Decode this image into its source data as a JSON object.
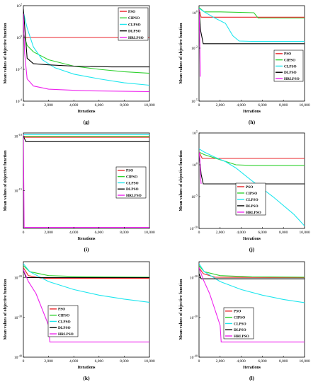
{
  "colors": {
    "PSO": "#e8262b",
    "CIPSO": "#2fd12f",
    "CLPSO": "#1ee6ee",
    "DLPSO": "#000000",
    "HRLPSO": "#ee22ee"
  },
  "chart_data": [
    {
      "type": "line",
      "caption": "(g)",
      "ylabel": "Mean values of objective function",
      "xlabel": "Iterations",
      "y_scale": "log",
      "ylim_exp": [
        -4,
        2
      ],
      "yticks": [
        {
          "exp": 2,
          "label": "10",
          "sup": "2"
        },
        {
          "exp": 0,
          "label": "10",
          "sup": "0"
        },
        {
          "exp": -2,
          "label": "10",
          "sup": "-2"
        },
        {
          "exp": -4,
          "label": "10",
          "sup": "-4"
        }
      ],
      "xlim": [
        0,
        10000
      ],
      "xticks": [
        "0",
        "2,000",
        "4,000",
        "6,000",
        "8,000",
        "10,000"
      ],
      "legend": {
        "position": "top-right",
        "entries": [
          "PSO",
          "CIPSO",
          "CLPSO",
          "DLPSO",
          "HRLPSO"
        ]
      },
      "series": [
        {
          "name": "PSO",
          "points": [
            [
              0,
              0
            ],
            [
              10000,
              0
            ]
          ]
        },
        {
          "name": "CIPSO",
          "points": [
            [
              0,
              0.3
            ],
            [
              300,
              -0.5
            ],
            [
              800,
              -0.9
            ],
            [
              2000,
              -1.4
            ],
            [
              4000,
              -1.8
            ],
            [
              6000,
              -2.0
            ],
            [
              8000,
              -2.15
            ],
            [
              10000,
              -2.25
            ]
          ]
        },
        {
          "name": "CLPSO",
          "points": [
            [
              0,
              1.6
            ],
            [
              300,
              0.6
            ],
            [
              800,
              -0.6
            ],
            [
              1500,
              -1.4
            ],
            [
              2500,
              -1.9
            ],
            [
              4000,
              -2.3
            ],
            [
              6000,
              -2.6
            ],
            [
              8000,
              -2.85
            ],
            [
              10000,
              -3.0
            ]
          ]
        },
        {
          "name": "DLPSO",
          "points": [
            [
              0,
              1.8
            ],
            [
              150,
              0.2
            ],
            [
              300,
              -1.3
            ],
            [
              800,
              -1.65
            ],
            [
              2000,
              -1.72
            ],
            [
              4000,
              -1.8
            ],
            [
              7000,
              -1.85
            ],
            [
              10000,
              -1.85
            ]
          ]
        },
        {
          "name": "HRLPSO",
          "points": [
            [
              0,
              1.5
            ],
            [
              100,
              -1.0
            ],
            [
              300,
              -2.6
            ],
            [
              800,
              -3.05
            ],
            [
              2000,
              -3.25
            ],
            [
              5000,
              -3.35
            ],
            [
              10000,
              -3.4
            ]
          ]
        }
      ]
    },
    {
      "type": "line",
      "caption": "(h)",
      "ylabel": "Mean values of objective function",
      "xlabel": "Iterations",
      "y_scale": "log",
      "ylim_exp": [
        -5,
        0.4
      ],
      "yticks": [
        {
          "exp": 0,
          "label": "10",
          "sup": "0"
        },
        {
          "exp": -2,
          "label": "10",
          "sup": "-2"
        },
        {
          "exp": -5,
          "label": "10",
          "sup": "-5"
        }
      ],
      "xlim": [
        0,
        10000
      ],
      "xticks": [
        "0",
        "2,000",
        "4,000",
        "6,000",
        "8,000",
        "10,000"
      ],
      "legend": {
        "position": "center-right",
        "entries": [
          "PSO",
          "CIPSO",
          "CLPSO",
          "DLPSO",
          "HRLPSO"
        ]
      },
      "series": [
        {
          "name": "PSO",
          "points": [
            [
              0,
              0.2
            ],
            [
              200,
              -0.25
            ],
            [
              10000,
              -0.25
            ]
          ]
        },
        {
          "name": "CIPSO",
          "points": [
            [
              0,
              0.3
            ],
            [
              500,
              0.05
            ],
            [
              2000,
              0.05
            ],
            [
              5200,
              0.0
            ],
            [
              5600,
              -0.3
            ],
            [
              7000,
              -0.3
            ],
            [
              10000,
              -0.3
            ]
          ]
        },
        {
          "name": "CLPSO",
          "points": [
            [
              0,
              0.25
            ],
            [
              500,
              0.05
            ],
            [
              1500,
              -0.3
            ],
            [
              2500,
              -0.6
            ],
            [
              3200,
              -1.3
            ],
            [
              3800,
              -1.6
            ],
            [
              5000,
              -1.62
            ],
            [
              10000,
              -1.62
            ]
          ]
        },
        {
          "name": "DLPSO",
          "points": [
            [
              0,
              0.2
            ],
            [
              150,
              -1.0
            ],
            [
              400,
              -1.75
            ],
            [
              10000,
              -1.75
            ]
          ]
        },
        {
          "name": "HRLPSO",
          "points": [
            [
              0,
              0.2
            ],
            [
              60,
              -1.2
            ],
            [
              120,
              -3.6
            ],
            [
              150,
              -3.6
            ]
          ]
        }
      ]
    },
    {
      "type": "line",
      "caption": "(i)",
      "ylabel": "Mean values of objective function",
      "xlabel": "Iterations",
      "y_scale": "log",
      "ylim_exp": [
        -18.5,
        -9.7
      ],
      "yticks": [
        {
          "exp": -10,
          "label": "10",
          "sup": "-10"
        },
        {
          "exp": -15,
          "label": "10",
          "sup": "-15"
        }
      ],
      "xlim": [
        0,
        10000
      ],
      "xticks": [
        "0",
        "2,000",
        "4,000",
        "6,000",
        "8,000",
        "10,000"
      ],
      "legend": {
        "position": "center-right",
        "entries": [
          "PSO",
          "CIPSO",
          "CLPSO",
          "DLPSO",
          "HRLPSO"
        ]
      },
      "series": [
        {
          "name": "PSO",
          "points": [
            [
              0,
              -10.1
            ],
            [
              10000,
              -10.1
            ]
          ]
        },
        {
          "name": "CIPSO",
          "points": [
            [
              0,
              -10.0
            ],
            [
              10000,
              -10.0
            ]
          ]
        },
        {
          "name": "CLPSO",
          "points": [
            [
              0,
              -9.85
            ],
            [
              10000,
              -9.85
            ]
          ]
        },
        {
          "name": "DLPSO",
          "points": [
            [
              0,
              -10.0
            ],
            [
              200,
              -10.5
            ],
            [
              10000,
              -10.5
            ]
          ]
        },
        {
          "name": "HRLPSO",
          "points": [
            [
              0,
              -9.85
            ],
            [
              60,
              -18.4
            ],
            [
              10000,
              -18.4
            ]
          ]
        }
      ]
    },
    {
      "type": "line",
      "caption": "(j)",
      "ylabel": "Mean values of objective function",
      "xlabel": "Iterations",
      "y_scale": "log",
      "ylim_exp": [
        -10,
        5
      ],
      "yticks": [
        {
          "exp": 5,
          "label": "10",
          "sup": "5"
        },
        {
          "exp": 0,
          "label": "10",
          "sup": "0"
        },
        {
          "exp": -5,
          "label": "10",
          "sup": "-5"
        },
        {
          "exp": -10,
          "label": "10",
          "sup": "-10"
        }
      ],
      "xlim": [
        0,
        10000
      ],
      "xticks": [
        "0",
        "2,000",
        "4,000",
        "6,000",
        "8,000",
        "10,000"
      ],
      "legend": {
        "position": "center",
        "entries": [
          "PSO",
          "CIPSO",
          "CLPSO",
          "DLPSO",
          "HRLPSO"
        ]
      },
      "series": [
        {
          "name": "PSO",
          "points": [
            [
              0,
              2.0
            ],
            [
              300,
              1.0
            ],
            [
              10000,
              1.0
            ]
          ]
        },
        {
          "name": "CIPSO",
          "points": [
            [
              0,
              2.0
            ],
            [
              500,
              1.6
            ],
            [
              2000,
              0.8
            ],
            [
              3500,
              0.0
            ],
            [
              5000,
              -0.1
            ],
            [
              10000,
              -0.1
            ]
          ]
        },
        {
          "name": "CLPSO",
          "points": [
            [
              0,
              2.5
            ],
            [
              500,
              2.0
            ],
            [
              1500,
              1.2
            ],
            [
              2500,
              0.5
            ],
            [
              3500,
              -0.5
            ],
            [
              5000,
              -2.5
            ],
            [
              7000,
              -5.0
            ],
            [
              9000,
              -7.8
            ],
            [
              10000,
              -9.6
            ]
          ]
        },
        {
          "name": "DLPSO",
          "points": [
            [
              0,
              2.0
            ],
            [
              200,
              -1.5
            ],
            [
              400,
              -3.0
            ],
            [
              10000,
              -3.0
            ]
          ]
        },
        {
          "name": "HRLPSO",
          "points": [
            [
              0,
              2.0
            ],
            [
              80,
              1.0
            ],
            [
              150,
              -2.0
            ],
            [
              200,
              -3.0
            ]
          ]
        }
      ]
    },
    {
      "type": "line",
      "caption": "(k)",
      "ylabel": "Mean values of objective function",
      "xlabel": "Iterations",
      "y_scale": "log",
      "ylim_exp": [
        -40,
        -16
      ],
      "yticks": [
        {
          "exp": -20,
          "label": "10",
          "sup": "-20"
        },
        {
          "exp": -30,
          "label": "10",
          "sup": "-30"
        },
        {
          "exp": -40,
          "label": "10",
          "sup": "-40"
        }
      ],
      "xlim": [
        0,
        10000
      ],
      "xticks": [
        "0",
        "2,000",
        "4,000",
        "6,000",
        "8,000",
        "10,000"
      ],
      "legend": {
        "position": "center",
        "entries": [
          "PSO",
          "CIPSO",
          "CLPSO",
          "DLPSO",
          "HRLPSO"
        ]
      },
      "series": [
        {
          "name": "PSO",
          "points": [
            [
              0,
              -17.5
            ],
            [
              400,
              -19.5
            ],
            [
              1500,
              -20.2
            ],
            [
              10000,
              -20.2
            ]
          ]
        },
        {
          "name": "CIPSO",
          "points": [
            [
              0,
              -17.0
            ],
            [
              500,
              -18.5
            ],
            [
              2000,
              -19.5
            ],
            [
              5000,
              -19.8
            ],
            [
              10000,
              -19.9
            ]
          ]
        },
        {
          "name": "CLPSO",
          "points": [
            [
              0,
              -16.5
            ],
            [
              500,
              -18.5
            ],
            [
              2000,
              -21.0
            ],
            [
              4000,
              -23.0
            ],
            [
              6000,
              -24.4
            ],
            [
              8000,
              -25.4
            ],
            [
              10000,
              -26.2
            ]
          ]
        },
        {
          "name": "DLPSO",
          "points": [
            [
              0,
              -18.0
            ],
            [
              200,
              -20.0
            ],
            [
              10000,
              -20.0
            ]
          ]
        },
        {
          "name": "HRLPSO",
          "points": [
            [
              0,
              -18.0
            ],
            [
              400,
              -21.0
            ],
            [
              1000,
              -24.0
            ],
            [
              1500,
              -28.0
            ],
            [
              2000,
              -32.0
            ],
            [
              2100,
              -36.2
            ],
            [
              10000,
              -36.2
            ]
          ]
        }
      ]
    },
    {
      "type": "line",
      "caption": "(l)",
      "ylabel": "Mean values of objective function",
      "xlabel": "Iterations",
      "y_scale": "log",
      "ylim_exp": [
        -40,
        -16
      ],
      "yticks": [
        {
          "exp": -20,
          "label": "10",
          "sup": "-20"
        },
        {
          "exp": -30,
          "label": "10",
          "sup": "-30"
        },
        {
          "exp": -40,
          "label": "10",
          "sup": "-40"
        }
      ],
      "xlim": [
        0,
        10000
      ],
      "xticks": [
        "0",
        "2,000",
        "4,000",
        "6,000",
        "8,000",
        "10,000"
      ],
      "legend": {
        "position": "center",
        "entries": [
          "PSO",
          "CIPSO",
          "CLPSO",
          "DLPSO",
          "HRLPSO"
        ]
      },
      "series": [
        {
          "name": "PSO",
          "points": [
            [
              0,
              -17.5
            ],
            [
              400,
              -19.0
            ],
            [
              1500,
              -19.9
            ],
            [
              10000,
              -20.0
            ]
          ]
        },
        {
          "name": "CIPSO",
          "points": [
            [
              0,
              -17.0
            ],
            [
              500,
              -18.5
            ],
            [
              2000,
              -19.5
            ],
            [
              5000,
              -19.8
            ],
            [
              10000,
              -19.9
            ]
          ]
        },
        {
          "name": "CLPSO",
          "points": [
            [
              0,
              -16.5
            ],
            [
              500,
              -18.5
            ],
            [
              2000,
              -21.0
            ],
            [
              4000,
              -23.0
            ],
            [
              6000,
              -24.4
            ],
            [
              8000,
              -25.5
            ],
            [
              10000,
              -26.3
            ]
          ]
        },
        {
          "name": "DLPSO",
          "points": [
            [
              0,
              -19.0
            ],
            [
              200,
              -20.3
            ],
            [
              10000,
              -20.3
            ]
          ]
        },
        {
          "name": "HRLPSO",
          "points": [
            [
              0,
              -17.5
            ],
            [
              400,
              -20.5
            ],
            [
              1000,
              -24.0
            ],
            [
              1500,
              -28.0
            ],
            [
              2000,
              -32.0
            ],
            [
              2100,
              -36.2
            ],
            [
              10000,
              -36.2
            ]
          ]
        }
      ]
    }
  ]
}
